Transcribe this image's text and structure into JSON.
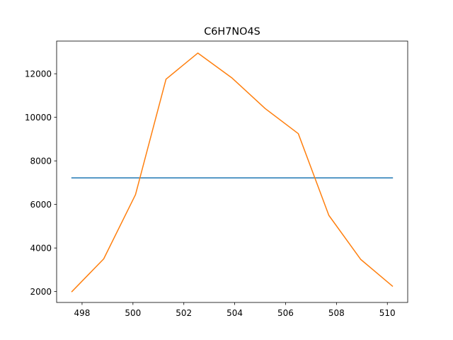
{
  "chart_data": {
    "type": "line",
    "title": "C6H7NO4S",
    "xlabel": "",
    "ylabel": "",
    "xlim": [
      497.0,
      510.8
    ],
    "ylim": [
      1500,
      13500
    ],
    "xticks": [
      498,
      500,
      502,
      504,
      506,
      508,
      510
    ],
    "yticks": [
      2000,
      4000,
      6000,
      8000,
      10000,
      12000
    ],
    "grid": false,
    "series": [
      {
        "color": "#1f77b4",
        "x": [
          497.6,
          510.2
        ],
        "y": [
          7220,
          7220
        ]
      },
      {
        "color": "#ff7f0e",
        "x": [
          497.6,
          498.85,
          500.1,
          501.3,
          502.55,
          503.9,
          505.2,
          506.5,
          507.7,
          508.95,
          510.2
        ],
        "y": [
          2000,
          3500,
          6450,
          11750,
          12950,
          11800,
          10400,
          9250,
          5500,
          3480,
          2250
        ]
      }
    ]
  }
}
